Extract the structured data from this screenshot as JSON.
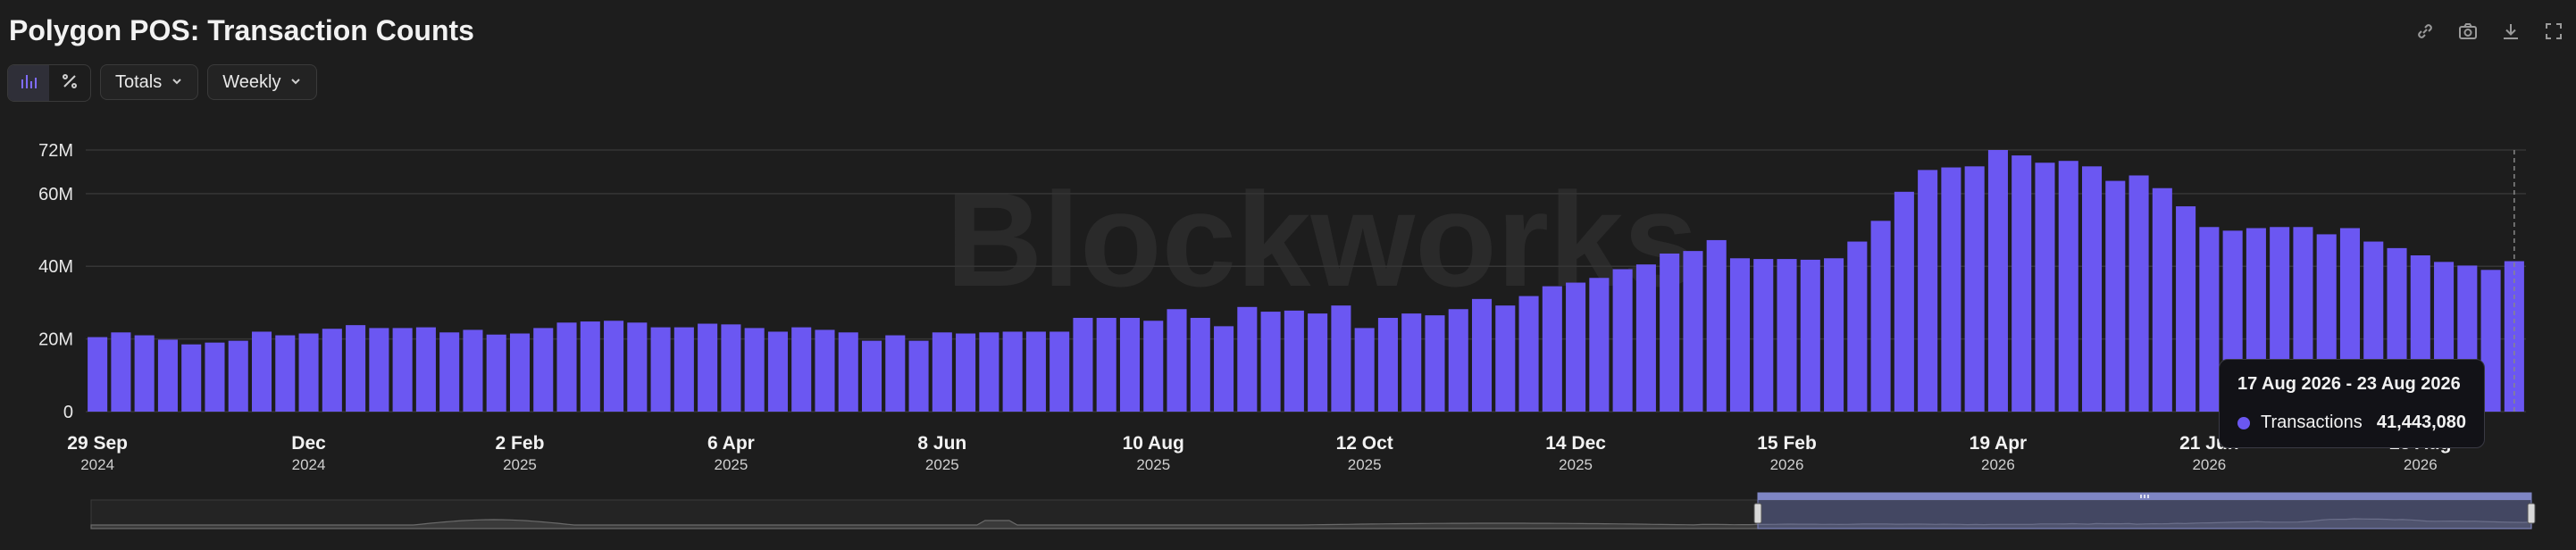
{
  "header": {
    "title": "Polygon POS: Transaction Counts"
  },
  "toolbar": {
    "totals_label": "Totals",
    "interval_label": "Weekly"
  },
  "icons": [
    "link-icon",
    "camera-icon",
    "download-icon",
    "fullscreen-icon",
    "bar-chart-icon",
    "percent-icon",
    "chevron-down-icon"
  ],
  "watermark": "Blockworks",
  "colors": {
    "bar": "#6b57f2",
    "background": "#1d1d1d",
    "grid": "#353535"
  },
  "tooltip": {
    "title": "17 Aug 2026 - 23 Aug 2026",
    "series": "Transactions",
    "value": "41,443,080"
  },
  "chart_data": {
    "type": "bar",
    "x_start": "2024-09-29",
    "x_interval": "weekly",
    "ylim": [
      0,
      72000000
    ],
    "y_ticks": [
      {
        "value": 0,
        "label": "0"
      },
      {
        "value": 20000000,
        "label": "20M"
      },
      {
        "value": 40000000,
        "label": "40M"
      },
      {
        "value": 60000000,
        "label": "60M"
      },
      {
        "value": 72000000,
        "label": "72M"
      }
    ],
    "x_ticks": [
      {
        "label": "29 Sep",
        "year": "2024",
        "index": 0
      },
      {
        "label": "Dec",
        "year": "2024",
        "index": 9
      },
      {
        "label": "2 Feb",
        "year": "2025",
        "index": 18
      },
      {
        "label": "6 Apr",
        "year": "2025",
        "index": 27
      },
      {
        "label": "8 Jun",
        "year": "2025",
        "index": 36
      },
      {
        "label": "10 Aug",
        "year": "2025",
        "index": 45
      },
      {
        "label": "12 Oct",
        "year": "2025",
        "index": 54
      },
      {
        "label": "14 Dec",
        "year": "2025",
        "index": 63
      },
      {
        "label": "15 Feb",
        "year": "2026",
        "index": 72
      },
      {
        "label": "19 Apr",
        "year": "2026",
        "index": 81
      },
      {
        "label": "21 Jun",
        "year": "2026",
        "index": 90
      },
      {
        "label": "23 Aug",
        "year": "2026",
        "index": 99
      }
    ],
    "series": [
      {
        "name": "Transactions",
        "values": [
          20.5,
          21.8,
          21,
          19.8,
          18.5,
          19,
          19.5,
          22,
          21,
          21.5,
          22.8,
          23.8,
          23,
          23,
          23.2,
          21.8,
          22.5,
          21.2,
          21.5,
          23,
          24.5,
          24.8,
          25,
          24.5,
          23.2,
          23.2,
          24.2,
          24,
          23,
          22,
          23.2,
          22.5,
          21.8,
          19.5,
          21,
          19.5,
          21.8,
          21.5,
          21.8,
          22,
          22,
          22,
          25.8,
          25.8,
          25.8,
          25,
          28.2,
          25.8,
          23.5,
          28.8,
          27.5,
          27.8,
          27,
          29.2,
          23,
          25.8,
          27,
          26.5,
          28.2,
          31,
          29.2,
          31.8,
          34.5,
          35.5,
          36.8,
          39.2,
          40.5,
          43.5,
          44.2,
          47.2,
          42.2,
          42,
          42,
          41.8,
          42.2,
          46.8,
          52.5,
          60.5,
          66.5,
          67.2,
          67.5,
          72,
          70.5,
          68.5,
          69,
          67.5,
          63.5,
          65,
          61.5,
          56.5,
          50.8,
          49.8,
          50.5,
          50.8,
          50.8,
          48.8,
          50.5,
          46.8,
          45,
          43,
          41.2,
          40.2,
          39,
          41.4
        ]
      }
    ]
  }
}
